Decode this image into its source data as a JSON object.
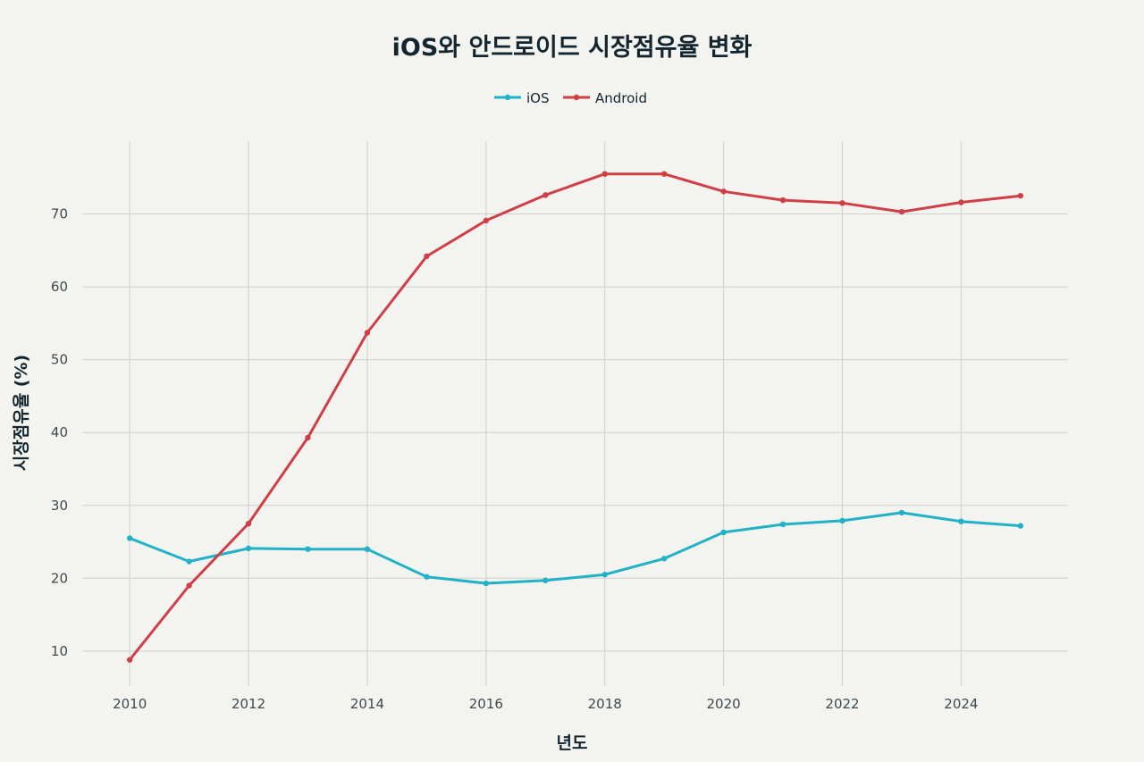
{
  "chart_data": {
    "type": "line",
    "title": "iOS와 안드로이드 시장점유율 변화",
    "xlabel": "년도",
    "ylabel": "시장점유율 (%)",
    "x": [
      2010,
      2011,
      2012,
      2013,
      2014,
      2015,
      2016,
      2017,
      2018,
      2019,
      2020,
      2021,
      2022,
      2023,
      2024,
      2025
    ],
    "xticks": [
      2010,
      2012,
      2014,
      2016,
      2018,
      2020,
      2022,
      2024
    ],
    "yticks": [
      10,
      20,
      30,
      40,
      50,
      60,
      70
    ],
    "xlim": [
      2009.2,
      2025.8
    ],
    "ylim": [
      5.2,
      80
    ],
    "grid": true,
    "legend_position": "top-center",
    "series": [
      {
        "name": "iOS",
        "color": "#22b1c6",
        "values": [
          25.5,
          22.3,
          24.1,
          24.0,
          24.0,
          20.2,
          19.3,
          19.7,
          20.5,
          22.7,
          26.3,
          27.4,
          27.9,
          29.0,
          27.8,
          27.2
        ]
      },
      {
        "name": "Android",
        "color": "#d03f47",
        "values": [
          8.8,
          19.0,
          27.5,
          39.3,
          53.7,
          64.2,
          69.1,
          72.6,
          75.5,
          75.5,
          73.1,
          71.9,
          71.5,
          70.3,
          71.6,
          72.5
        ]
      }
    ]
  }
}
